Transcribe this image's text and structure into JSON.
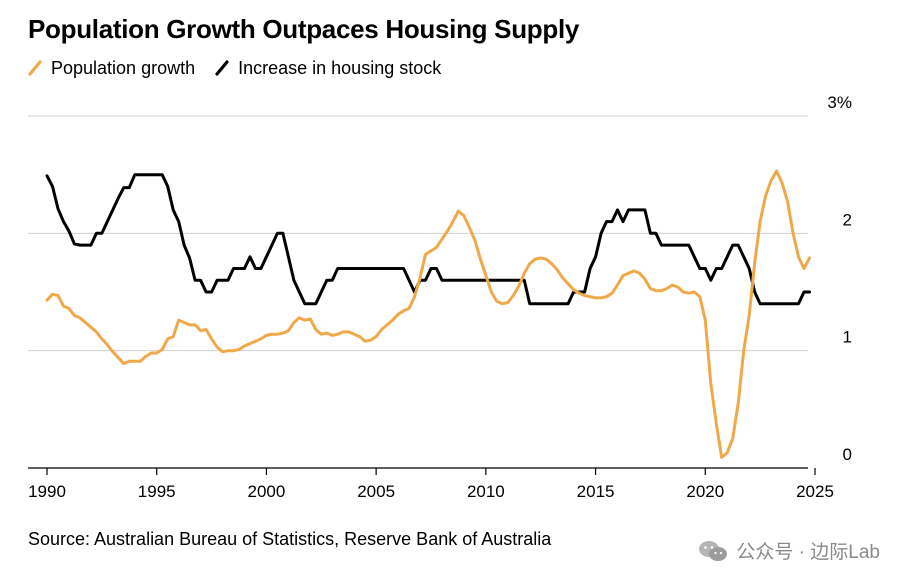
{
  "title": "Population Growth Outpaces Housing Supply",
  "legend": {
    "items": [
      {
        "label": "Population growth",
        "color": "#f0a94a"
      },
      {
        "label": "Increase in housing stock",
        "color": "#000000"
      }
    ]
  },
  "source": "Source: Australian Bureau of Statistics, Reserve Bank of Australia",
  "watermark": {
    "text": "公众号 · 边际Lab",
    "icon": "wechat-icon"
  },
  "chart_data": {
    "type": "line",
    "title": "Population Growth Outpaces Housing Supply",
    "xlabel": "",
    "ylabel": "",
    "xlim": [
      1990,
      2025
    ],
    "ylim": [
      0,
      3
    ],
    "x_ticks": [
      1990,
      1995,
      2000,
      2005,
      2010,
      2015,
      2020,
      2025
    ],
    "y_ticks": [
      {
        "value": 0,
        "label": "0"
      },
      {
        "value": 1,
        "label": "1"
      },
      {
        "value": 2,
        "label": "2"
      },
      {
        "value": 3,
        "label": "3%"
      }
    ],
    "grid": "horizontal",
    "legend_position": "top-left",
    "series": [
      {
        "name": "Population growth",
        "color": "#f0a94a",
        "points": [
          [
            1990.0,
            1.43
          ],
          [
            1990.25,
            1.48
          ],
          [
            1990.5,
            1.47
          ],
          [
            1990.75,
            1.38
          ],
          [
            1991.0,
            1.36
          ],
          [
            1991.25,
            1.3
          ],
          [
            1991.5,
            1.28
          ],
          [
            1991.75,
            1.24
          ],
          [
            1992.0,
            1.2
          ],
          [
            1992.25,
            1.16
          ],
          [
            1992.5,
            1.1
          ],
          [
            1992.75,
            1.05
          ],
          [
            1993.0,
            0.99
          ],
          [
            1993.25,
            0.94
          ],
          [
            1993.5,
            0.89
          ],
          [
            1993.75,
            0.91
          ],
          [
            1994.0,
            0.91
          ],
          [
            1994.25,
            0.91
          ],
          [
            1994.5,
            0.95
          ],
          [
            1994.75,
            0.98
          ],
          [
            1995.0,
            0.98
          ],
          [
            1995.25,
            1.01
          ],
          [
            1995.5,
            1.1
          ],
          [
            1995.75,
            1.12
          ],
          [
            1996.0,
            1.26
          ],
          [
            1996.25,
            1.24
          ],
          [
            1996.5,
            1.22
          ],
          [
            1996.75,
            1.22
          ],
          [
            1997.0,
            1.17
          ],
          [
            1997.25,
            1.18
          ],
          [
            1997.5,
            1.1
          ],
          [
            1997.75,
            1.03
          ],
          [
            1998.0,
            0.99
          ],
          [
            1998.25,
            1.0
          ],
          [
            1998.5,
            1.0
          ],
          [
            1998.75,
            1.01
          ],
          [
            1999.0,
            1.04
          ],
          [
            1999.25,
            1.06
          ],
          [
            1999.5,
            1.08
          ],
          [
            1999.75,
            1.1
          ],
          [
            2000.0,
            1.13
          ],
          [
            2000.25,
            1.14
          ],
          [
            2000.5,
            1.14
          ],
          [
            2000.75,
            1.15
          ],
          [
            2001.0,
            1.17
          ],
          [
            2001.25,
            1.24
          ],
          [
            2001.5,
            1.28
          ],
          [
            2001.75,
            1.26
          ],
          [
            2002.0,
            1.27
          ],
          [
            2002.25,
            1.18
          ],
          [
            2002.5,
            1.14
          ],
          [
            2002.75,
            1.15
          ],
          [
            2003.0,
            1.13
          ],
          [
            2003.25,
            1.14
          ],
          [
            2003.5,
            1.16
          ],
          [
            2003.75,
            1.16
          ],
          [
            2004.0,
            1.14
          ],
          [
            2004.25,
            1.12
          ],
          [
            2004.5,
            1.08
          ],
          [
            2004.75,
            1.09
          ],
          [
            2005.0,
            1.12
          ],
          [
            2005.25,
            1.18
          ],
          [
            2005.5,
            1.22
          ],
          [
            2005.75,
            1.26
          ],
          [
            2006.0,
            1.31
          ],
          [
            2006.25,
            1.34
          ],
          [
            2006.5,
            1.36
          ],
          [
            2006.75,
            1.46
          ],
          [
            2007.0,
            1.62
          ],
          [
            2007.25,
            1.82
          ],
          [
            2007.5,
            1.85
          ],
          [
            2007.75,
            1.88
          ],
          [
            2008.0,
            1.95
          ],
          [
            2008.25,
            2.02
          ],
          [
            2008.5,
            2.1
          ],
          [
            2008.75,
            2.19
          ],
          [
            2009.0,
            2.15
          ],
          [
            2009.25,
            2.05
          ],
          [
            2009.5,
            1.94
          ],
          [
            2009.75,
            1.78
          ],
          [
            2010.0,
            1.64
          ],
          [
            2010.25,
            1.5
          ],
          [
            2010.5,
            1.42
          ],
          [
            2010.75,
            1.4
          ],
          [
            2011.0,
            1.41
          ],
          [
            2011.25,
            1.47
          ],
          [
            2011.5,
            1.55
          ],
          [
            2011.75,
            1.66
          ],
          [
            2012.0,
            1.74
          ],
          [
            2012.25,
            1.78
          ],
          [
            2012.5,
            1.79
          ],
          [
            2012.75,
            1.78
          ],
          [
            2013.0,
            1.74
          ],
          [
            2013.25,
            1.69
          ],
          [
            2013.5,
            1.62
          ],
          [
            2013.75,
            1.57
          ],
          [
            2014.0,
            1.52
          ],
          [
            2014.25,
            1.49
          ],
          [
            2014.5,
            1.47
          ],
          [
            2014.75,
            1.46
          ],
          [
            2015.0,
            1.45
          ],
          [
            2015.25,
            1.45
          ],
          [
            2015.5,
            1.46
          ],
          [
            2015.75,
            1.49
          ],
          [
            2016.0,
            1.56
          ],
          [
            2016.25,
            1.64
          ],
          [
            2016.5,
            1.66
          ],
          [
            2016.75,
            1.68
          ],
          [
            2017.0,
            1.66
          ],
          [
            2017.25,
            1.61
          ],
          [
            2017.5,
            1.53
          ],
          [
            2017.75,
            1.51
          ],
          [
            2018.0,
            1.51
          ],
          [
            2018.25,
            1.53
          ],
          [
            2018.5,
            1.56
          ],
          [
            2018.75,
            1.54
          ],
          [
            2019.0,
            1.5
          ],
          [
            2019.25,
            1.49
          ],
          [
            2019.5,
            1.5
          ],
          [
            2019.75,
            1.46
          ],
          [
            2020.0,
            1.26
          ],
          [
            2020.25,
            0.72
          ],
          [
            2020.5,
            0.38
          ],
          [
            2020.75,
            0.09
          ],
          [
            2021.0,
            0.13
          ],
          [
            2021.25,
            0.25
          ],
          [
            2021.5,
            0.55
          ],
          [
            2021.75,
            1.0
          ],
          [
            2022.0,
            1.3
          ],
          [
            2022.25,
            1.75
          ],
          [
            2022.5,
            2.1
          ],
          [
            2022.75,
            2.32
          ],
          [
            2023.0,
            2.45
          ],
          [
            2023.25,
            2.53
          ],
          [
            2023.5,
            2.43
          ],
          [
            2023.75,
            2.27
          ],
          [
            2024.0,
            2.0
          ],
          [
            2024.25,
            1.8
          ],
          [
            2024.5,
            1.7
          ],
          [
            2024.75,
            1.79
          ]
        ]
      },
      {
        "name": "Increase in housing stock",
        "color": "#000000",
        "points": [
          [
            1990.0,
            2.49
          ],
          [
            1990.25,
            2.4
          ],
          [
            1990.5,
            2.21
          ],
          [
            1990.75,
            2.1
          ],
          [
            1991.0,
            2.02
          ],
          [
            1991.25,
            1.91
          ],
          [
            1991.5,
            1.9
          ],
          [
            1991.75,
            1.9
          ],
          [
            1992.0,
            1.9
          ],
          [
            1992.25,
            2.0
          ],
          [
            1992.5,
            2.0
          ],
          [
            1992.75,
            2.1
          ],
          [
            1993.0,
            2.2
          ],
          [
            1993.25,
            2.3
          ],
          [
            1993.5,
            2.39
          ],
          [
            1993.75,
            2.39
          ],
          [
            1994.0,
            2.5
          ],
          [
            1994.25,
            2.5
          ],
          [
            1994.5,
            2.5
          ],
          [
            1994.75,
            2.5
          ],
          [
            1995.0,
            2.5
          ],
          [
            1995.25,
            2.5
          ],
          [
            1995.5,
            2.4
          ],
          [
            1995.75,
            2.2
          ],
          [
            1996.0,
            2.1
          ],
          [
            1996.25,
            1.9
          ],
          [
            1996.5,
            1.79
          ],
          [
            1996.75,
            1.6
          ],
          [
            1997.0,
            1.6
          ],
          [
            1997.25,
            1.5
          ],
          [
            1997.5,
            1.5
          ],
          [
            1997.75,
            1.6
          ],
          [
            1998.0,
            1.6
          ],
          [
            1998.25,
            1.6
          ],
          [
            1998.5,
            1.7
          ],
          [
            1998.75,
            1.7
          ],
          [
            1999.0,
            1.7
          ],
          [
            1999.25,
            1.8
          ],
          [
            1999.5,
            1.7
          ],
          [
            1999.75,
            1.7
          ],
          [
            2000.0,
            1.8
          ],
          [
            2000.25,
            1.9
          ],
          [
            2000.5,
            2.0
          ],
          [
            2000.75,
            2.0
          ],
          [
            2001.0,
            1.8
          ],
          [
            2001.25,
            1.6
          ],
          [
            2001.5,
            1.5
          ],
          [
            2001.75,
            1.4
          ],
          [
            2002.0,
            1.4
          ],
          [
            2002.25,
            1.4
          ],
          [
            2002.5,
            1.5
          ],
          [
            2002.75,
            1.6
          ],
          [
            2003.0,
            1.6
          ],
          [
            2003.25,
            1.7
          ],
          [
            2003.5,
            1.7
          ],
          [
            2003.75,
            1.7
          ],
          [
            2004.0,
            1.7
          ],
          [
            2004.25,
            1.7
          ],
          [
            2004.5,
            1.7
          ],
          [
            2004.75,
            1.7
          ],
          [
            2005.0,
            1.7
          ],
          [
            2005.25,
            1.7
          ],
          [
            2005.5,
            1.7
          ],
          [
            2005.75,
            1.7
          ],
          [
            2006.0,
            1.7
          ],
          [
            2006.25,
            1.7
          ],
          [
            2006.5,
            1.6
          ],
          [
            2006.75,
            1.5
          ],
          [
            2007.0,
            1.6
          ],
          [
            2007.25,
            1.6
          ],
          [
            2007.5,
            1.7
          ],
          [
            2007.75,
            1.7
          ],
          [
            2008.0,
            1.6
          ],
          [
            2008.25,
            1.6
          ],
          [
            2008.5,
            1.6
          ],
          [
            2008.75,
            1.6
          ],
          [
            2009.0,
            1.6
          ],
          [
            2009.25,
            1.6
          ],
          [
            2009.5,
            1.6
          ],
          [
            2009.75,
            1.6
          ],
          [
            2010.0,
            1.6
          ],
          [
            2010.25,
            1.6
          ],
          [
            2010.5,
            1.6
          ],
          [
            2010.75,
            1.6
          ],
          [
            2011.0,
            1.6
          ],
          [
            2011.25,
            1.6
          ],
          [
            2011.5,
            1.6
          ],
          [
            2011.75,
            1.6
          ],
          [
            2012.0,
            1.4
          ],
          [
            2012.25,
            1.4
          ],
          [
            2012.5,
            1.4
          ],
          [
            2012.75,
            1.4
          ],
          [
            2013.0,
            1.4
          ],
          [
            2013.25,
            1.4
          ],
          [
            2013.5,
            1.4
          ],
          [
            2013.75,
            1.4
          ],
          [
            2014.0,
            1.5
          ],
          [
            2014.25,
            1.5
          ],
          [
            2014.5,
            1.5
          ],
          [
            2014.75,
            1.7
          ],
          [
            2015.0,
            1.8
          ],
          [
            2015.25,
            2.0
          ],
          [
            2015.5,
            2.1
          ],
          [
            2015.75,
            2.1
          ],
          [
            2016.0,
            2.2
          ],
          [
            2016.25,
            2.1
          ],
          [
            2016.5,
            2.2
          ],
          [
            2016.75,
            2.2
          ],
          [
            2017.0,
            2.2
          ],
          [
            2017.25,
            2.2
          ],
          [
            2017.5,
            2.0
          ],
          [
            2017.75,
            2.0
          ],
          [
            2018.0,
            1.9
          ],
          [
            2018.25,
            1.9
          ],
          [
            2018.5,
            1.9
          ],
          [
            2018.75,
            1.9
          ],
          [
            2019.0,
            1.9
          ],
          [
            2019.25,
            1.9
          ],
          [
            2019.5,
            1.8
          ],
          [
            2019.75,
            1.7
          ],
          [
            2020.0,
            1.7
          ],
          [
            2020.25,
            1.6
          ],
          [
            2020.5,
            1.7
          ],
          [
            2020.75,
            1.7
          ],
          [
            2021.0,
            1.8
          ],
          [
            2021.25,
            1.9
          ],
          [
            2021.5,
            1.9
          ],
          [
            2021.75,
            1.8
          ],
          [
            2022.0,
            1.7
          ],
          [
            2022.25,
            1.5
          ],
          [
            2022.5,
            1.4
          ],
          [
            2022.75,
            1.4
          ],
          [
            2023.0,
            1.4
          ],
          [
            2023.25,
            1.4
          ],
          [
            2023.5,
            1.4
          ],
          [
            2023.75,
            1.4
          ],
          [
            2024.0,
            1.4
          ],
          [
            2024.25,
            1.4
          ],
          [
            2024.5,
            1.5
          ],
          [
            2024.75,
            1.5
          ]
        ]
      }
    ]
  }
}
